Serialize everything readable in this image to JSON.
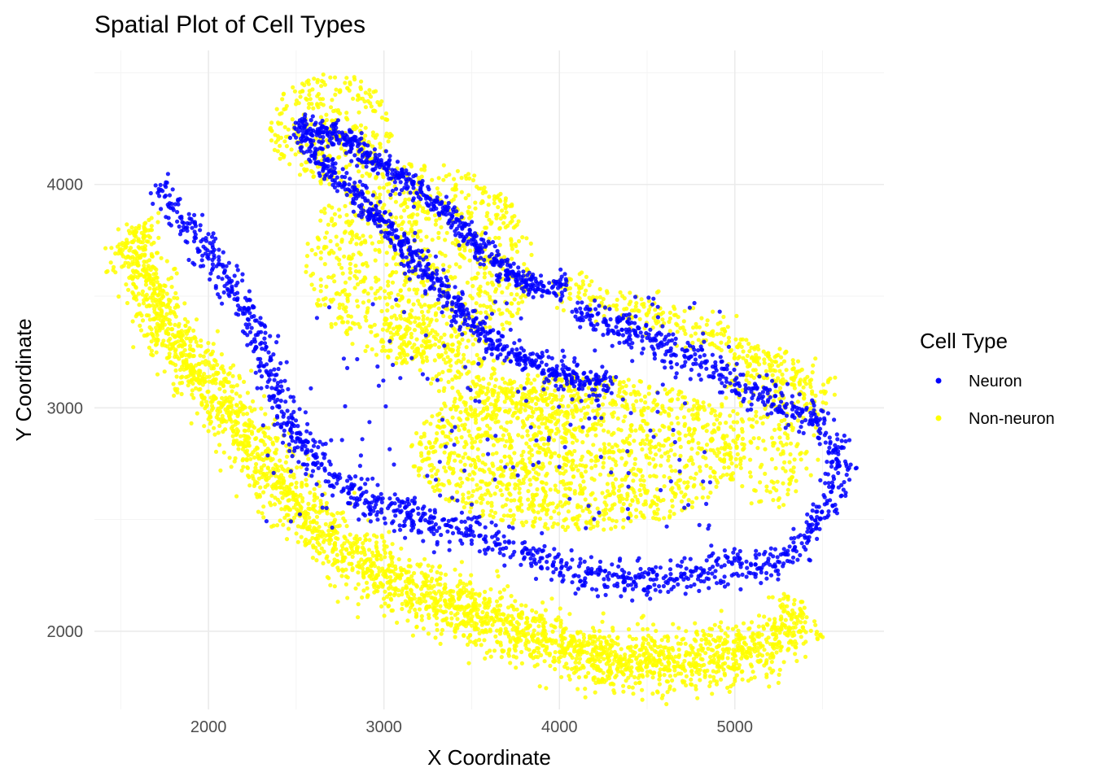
{
  "chart_data": {
    "type": "scatter",
    "title": "Spatial Plot of Cell Types",
    "xlabel": "X Coordinate",
    "ylabel": "Y Coordinate",
    "xlim": [
      1350,
      5850
    ],
    "ylim": [
      1650,
      4600
    ],
    "x_ticks": [
      2000,
      3000,
      4000,
      5000
    ],
    "y_ticks": [
      2000,
      3000,
      4000
    ],
    "grid": true,
    "legend": {
      "title": "Cell Type",
      "position": "right",
      "entries": [
        "Neuron",
        "Non-neuron"
      ]
    },
    "point_size_note": "small dots",
    "series": [
      {
        "name": "Neuron",
        "color": "#0000ff",
        "regions": [
          {
            "shape": "band",
            "path": [
              [
                1700,
                4000
              ],
              [
                1900,
                3800
              ],
              [
                2100,
                3600
              ],
              [
                2250,
                3400
              ],
              [
                2350,
                3150
              ],
              [
                2450,
                2950
              ],
              [
                2600,
                2750
              ],
              [
                2850,
                2600
              ],
              [
                3200,
                2500
              ],
              [
                3550,
                2420
              ],
              [
                3850,
                2330
              ],
              [
                4150,
                2250
              ],
              [
                4450,
                2220
              ],
              [
                4750,
                2250
              ],
              [
                5000,
                2300
              ],
              [
                5200,
                2280
              ],
              [
                5400,
                2400
              ],
              [
                5550,
                2600
              ],
              [
                5600,
                2800
              ],
              [
                5500,
                2920
              ],
              [
                5300,
                3000
              ],
              [
                5050,
                3100
              ],
              [
                4800,
                3200
              ],
              [
                4550,
                3300
              ],
              [
                4300,
                3380
              ],
              [
                4100,
                3450
              ]
            ],
            "width": 75,
            "count": 1550
          },
          {
            "shape": "band",
            "path": [
              [
                2500,
                4270
              ],
              [
                2650,
                4100
              ],
              [
                2850,
                3950
              ],
              [
                3050,
                3780
              ],
              [
                3250,
                3600
              ],
              [
                3450,
                3420
              ],
              [
                3650,
                3280
              ],
              [
                3850,
                3200
              ],
              [
                4100,
                3130
              ],
              [
                4300,
                3100
              ]
            ],
            "width": 55,
            "count": 700
          },
          {
            "shape": "band",
            "path": [
              [
                2550,
                4260
              ],
              [
                2750,
                4220
              ],
              [
                2950,
                4100
              ],
              [
                3150,
                4000
              ],
              [
                3350,
                3880
              ],
              [
                3550,
                3720
              ],
              [
                3750,
                3580
              ],
              [
                3900,
                3530
              ],
              [
                4050,
                3550
              ]
            ],
            "width": 45,
            "count": 550
          },
          {
            "shape": "scatter",
            "bounds": [
              2300,
              2450,
              5000,
              3500
            ],
            "count": 180
          }
        ]
      },
      {
        "name": "Non-neuron",
        "color": "#ffff00",
        "regions": [
          {
            "shape": "band",
            "path": [
              [
                1550,
                3800
              ],
              [
                1650,
                3550
              ],
              [
                1800,
                3300
              ],
              [
                2000,
                3100
              ],
              [
                2200,
                2900
              ],
              [
                2400,
                2650
              ],
              [
                2700,
                2400
              ],
              [
                3000,
                2250
              ],
              [
                3300,
                2150
              ],
              [
                3600,
                2050
              ],
              [
                3900,
                1960
              ],
              [
                4200,
                1880
              ],
              [
                4500,
                1860
              ],
              [
                4800,
                1870
              ],
              [
                5050,
                1900
              ],
              [
                5250,
                1960
              ],
              [
                5400,
                2100
              ]
            ],
            "width": 140,
            "count": 3000
          },
          {
            "shape": "blob",
            "center": [
              3200,
              3650
            ],
            "radius": [
              650,
              450
            ],
            "count": 900
          },
          {
            "shape": "blob",
            "center": [
              2700,
              4250
            ],
            "radius": [
              350,
              250
            ],
            "count": 300
          },
          {
            "shape": "blob",
            "center": [
              4100,
              2800
            ],
            "radius": [
              950,
              350
            ],
            "count": 1400
          },
          {
            "shape": "blob",
            "center": [
              5200,
              2900
            ],
            "radius": [
              300,
              350
            ],
            "count": 250
          },
          {
            "shape": "band",
            "path": [
              [
                3000,
                3350
              ],
              [
                3300,
                3250
              ],
              [
                3700,
                3050
              ],
              [
                4100,
                2950
              ]
            ],
            "width": 120,
            "count": 300
          },
          {
            "shape": "band",
            "path": [
              [
                4000,
                3550
              ],
              [
                4400,
                3450
              ],
              [
                4800,
                3350
              ],
              [
                5200,
                3200
              ],
              [
                5550,
                3050
              ]
            ],
            "width": 90,
            "count": 300
          }
        ]
      }
    ]
  }
}
